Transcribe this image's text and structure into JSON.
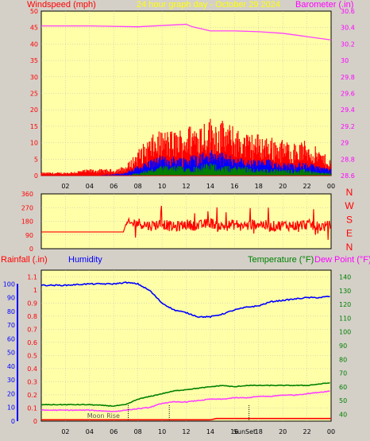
{
  "header": {
    "windspeed_label": "Windspeed (mph)",
    "title": "24 hour graph day - October 29 2024",
    "barometer_label": "Barometer (.in)"
  },
  "footer_header": {
    "rainfall_label": "Rainfall (.in)",
    "humidity_label": "Humidity",
    "temperature_label": "Temperature (°F)",
    "dewpoint_label": "Dew Point (°F)"
  },
  "compass": [
    "N",
    "W",
    "S",
    "E",
    "N"
  ],
  "annotations": {
    "moon_rise": "Moon Rise",
    "sunset": "SunSet"
  },
  "colors": {
    "plot_bg": "#ffffa8",
    "frame": "#d4d0c8",
    "wind_max": "#ff0000",
    "wind_avg": "#0000ff",
    "wind_min": "#008000",
    "barometer": "#ff40ff",
    "direction": "#ff0000",
    "humidity": "#0000ff",
    "temperature": "#008000",
    "dewpoint": "#ff40ff",
    "rain": "#ff0000",
    "title": "#ffff00"
  },
  "chart_data": [
    {
      "type": "line",
      "name": "wind-barometer",
      "x_ticks": [
        "02",
        "04",
        "06",
        "08",
        "10",
        "12",
        "14",
        "16",
        "18",
        "20",
        "22",
        "00"
      ],
      "y_left": {
        "label": "Windspeed (mph)",
        "ticks": [
          0,
          5,
          10,
          15,
          20,
          25,
          30,
          35,
          40,
          45,
          50
        ],
        "ylim": [
          0,
          50
        ]
      },
      "y_right": {
        "label": "Barometer (.in)",
        "ticks": [
          "28.6",
          "28.8",
          "29",
          "29.2",
          "29.4",
          "29.6",
          "29.8",
          "30",
          "30.2",
          "30.4",
          "30.6"
        ],
        "ylim": [
          28.6,
          30.6
        ]
      },
      "series": [
        {
          "name": "Barometer",
          "axis": "right",
          "x": [
            0,
            4,
            8,
            12,
            12.5,
            14,
            16,
            18,
            20,
            22,
            24
          ],
          "y": [
            30.42,
            30.42,
            30.41,
            30.44,
            30.41,
            30.36,
            30.36,
            30.35,
            30.33,
            30.29,
            30.25
          ]
        }
      ],
      "wind_envelope": {
        "x": [
          0,
          2,
          4,
          6,
          7,
          8,
          9,
          10,
          11,
          12,
          13,
          14,
          15,
          16,
          17,
          18,
          19,
          20,
          21,
          22,
          23,
          24
        ],
        "max": [
          1,
          1,
          2,
          2,
          3,
          8,
          12,
          14,
          14,
          15,
          17,
          18,
          17,
          15,
          13,
          13,
          12,
          11,
          10,
          11,
          8,
          5
        ],
        "avg": [
          0,
          0,
          0,
          0.5,
          1,
          3,
          5,
          6,
          6,
          6,
          7,
          8,
          7,
          6,
          5,
          5,
          5,
          4,
          4,
          4,
          3,
          2
        ],
        "min": [
          0,
          0,
          0,
          0,
          0,
          1,
          2,
          3,
          3,
          3,
          3,
          4,
          3,
          3,
          3,
          2,
          2,
          2,
          2,
          2,
          1,
          1
        ]
      },
      "grid": true
    },
    {
      "type": "line",
      "name": "wind-direction",
      "x_ticks": [
        "02",
        "04",
        "06",
        "08",
        "10",
        "12",
        "14",
        "16",
        "18",
        "20",
        "22",
        "00"
      ],
      "y_left": {
        "ticks": [
          0,
          90,
          180,
          270,
          360
        ],
        "ylim": [
          0,
          360
        ]
      },
      "series": [
        {
          "name": "Wind Direction",
          "x": [
            0,
            6,
            6.8,
            7,
            8,
            9,
            10,
            11,
            12,
            13,
            14,
            15,
            16,
            17,
            18,
            19,
            20,
            21,
            22,
            23,
            24
          ],
          "y": [
            110,
            110,
            110,
            160,
            170,
            150,
            165,
            140,
            160,
            150,
            170,
            145,
            160,
            150,
            165,
            145,
            155,
            150,
            160,
            145,
            150
          ]
        }
      ],
      "grid": true
    },
    {
      "type": "line",
      "name": "humidity-temperature",
      "x_ticks": [
        "02",
        "04",
        "06",
        "08",
        "10",
        "12",
        "14",
        "16",
        "18",
        "20",
        "22",
        "00"
      ],
      "y_left": {
        "label": "Rainfall (.in)",
        "ticks": [
          "0",
          "0.1",
          "0.2",
          "0.3",
          "0.4",
          "0.5",
          "0.6",
          "0.7",
          "0.8",
          "0.9",
          "1",
          "1.1"
        ],
        "ylim": [
          0,
          1.15
        ]
      },
      "y_humidity": {
        "label": "Humidity",
        "ticks": [
          0,
          10,
          20,
          30,
          40,
          50,
          60,
          70,
          80,
          90,
          100
        ],
        "ylim": [
          0,
          110
        ]
      },
      "y_right": {
        "label": "Temperature (°F)",
        "ticks": [
          40,
          50,
          60,
          70,
          80,
          90,
          100,
          110,
          120,
          130,
          140
        ],
        "ylim": [
          35,
          145
        ]
      },
      "series": [
        {
          "name": "Humidity",
          "axis": "humidity",
          "x": [
            0,
            2,
            4,
            6,
            7,
            8,
            9,
            10,
            11,
            12,
            13,
            14,
            15,
            16,
            17,
            18,
            19,
            20,
            21,
            22,
            23,
            24
          ],
          "y": [
            99,
            99,
            100,
            100,
            101,
            100,
            95,
            86,
            81,
            79,
            76,
            76,
            78,
            81,
            83,
            84,
            87,
            88,
            89,
            90,
            90,
            91
          ]
        },
        {
          "name": "Temperature",
          "axis": "right",
          "x": [
            0,
            2,
            4,
            6,
            7,
            8,
            9,
            10,
            11,
            12,
            13,
            14,
            15,
            16,
            17,
            18,
            19,
            20,
            21,
            22,
            23,
            24
          ],
          "y": [
            47,
            47,
            47,
            46,
            47,
            51,
            53,
            55,
            57,
            58,
            59,
            60,
            61,
            60,
            61,
            61,
            61,
            61,
            61,
            61,
            62,
            63
          ]
        },
        {
          "name": "Dew Point",
          "axis": "right",
          "x": [
            0,
            2,
            4,
            6,
            7,
            8,
            9,
            10,
            11,
            12,
            13,
            14,
            15,
            16,
            17,
            18,
            19,
            20,
            21,
            22,
            23,
            24
          ],
          "y": [
            43,
            43,
            43,
            42,
            43,
            44,
            45,
            48,
            49,
            49,
            50,
            51,
            51,
            52,
            52,
            53,
            53,
            54,
            54,
            55,
            56,
            57
          ]
        },
        {
          "name": "Rainfall",
          "axis": "left",
          "x": [
            0,
            14,
            14.5,
            24
          ],
          "y": [
            0.01,
            0.01,
            0.02,
            0.02
          ]
        }
      ],
      "grid": true
    }
  ]
}
